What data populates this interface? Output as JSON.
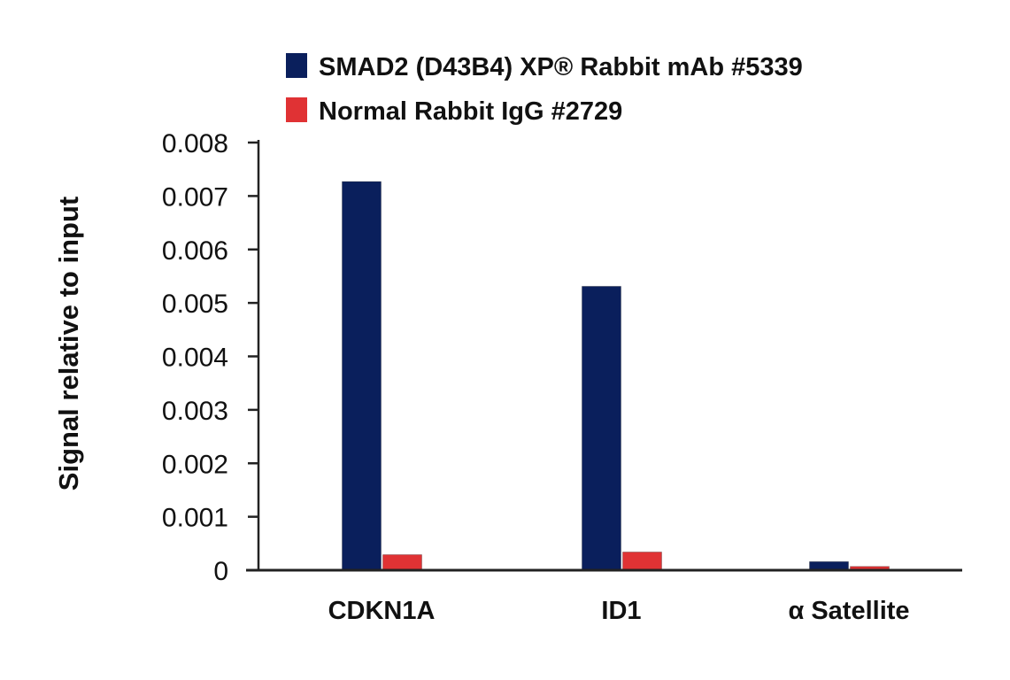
{
  "chart_data": {
    "type": "bar",
    "title": "",
    "xlabel": "",
    "ylabel": "Signal relative to input",
    "ylim": [
      0,
      0.008
    ],
    "yticks": [
      "0",
      "0.001",
      "0.002",
      "0.003",
      "0.004",
      "0.005",
      "0.006",
      "0.007",
      "0.008"
    ],
    "categories": [
      "CDKN1A",
      "ID1",
      "α Satellite"
    ],
    "series": [
      {
        "name": "SMAD2 (D43B4) XP® Rabbit mAb #5339",
        "color": "#0a1f5c",
        "values": [
          0.00727,
          0.00531,
          0.00016
        ]
      },
      {
        "name": "Normal Rabbit IgG #2729",
        "color": "#e03234",
        "values": [
          0.00029,
          0.00034,
          7e-05
        ]
      }
    ],
    "legend_position": "top",
    "grid": false
  }
}
